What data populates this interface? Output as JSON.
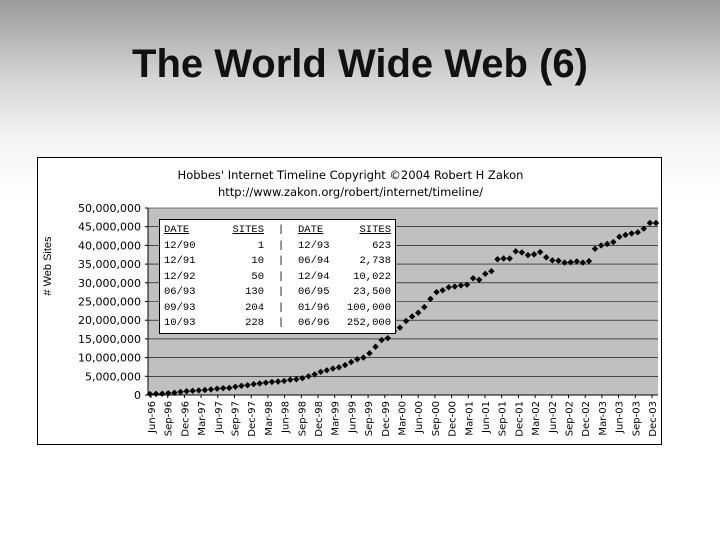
{
  "slide": {
    "title": "The World Wide Web (6)"
  },
  "chart_data": {
    "type": "scatter",
    "title": "Hobbes' Internet Timeline Copyright ©2004 Robert H Zakon",
    "subtitle": "http://www.zakon.org/robert/internet/timeline/",
    "ylabel": "# Web Sites",
    "xlabel": "",
    "ylim": [
      0,
      50000000
    ],
    "yticks": [
      "0",
      "5,000,000",
      "10,000,000",
      "15,000,000",
      "20,000,000",
      "25,000,000",
      "30,000,000",
      "35,000,000",
      "40,000,000",
      "45,000,000",
      "50,000,000"
    ],
    "categories": [
      "Jun-96",
      "Sep-96",
      "Dec-96",
      "Mar-97",
      "Jun-97",
      "Sep-97",
      "Dec-97",
      "Mar-98",
      "Jun-98",
      "Sep-98",
      "Dec-98",
      "Mar-99",
      "Jun-99",
      "Sep-99",
      "Dec-99",
      "Mar-00",
      "Jun-00",
      "Sep-00",
      "Dec-00",
      "Mar-01",
      "Jun-01",
      "Sep-01",
      "Dec-01",
      "Mar-02",
      "Jun-02",
      "Sep-02",
      "Dec-02",
      "Mar-03",
      "Jun-03",
      "Sep-03",
      "Dec-03"
    ],
    "grid": true,
    "series": [
      {
        "values": [
          252000,
          299000,
          342000,
          463000,
          603000,
          824000,
          1000000,
          1125000,
          1230000,
          1350000,
          1500000,
          1681000,
          1834000,
          1900000,
          2200000,
          2450000,
          2636000,
          2900000,
          3100000,
          3300000,
          3500000,
          3600000,
          3750000,
          4062000,
          4200000,
          4500000,
          5000000,
          5500000,
          6177000,
          6600000,
          7078000,
          7400000,
          8000000,
          8800000,
          9560000,
          10000000,
          11161000,
          12900000,
          14700000,
          15200000,
          17100000,
          18000000,
          19800000,
          21000000,
          22000000,
          23500000,
          25700000,
          27500000,
          28000000,
          28800000,
          29000000,
          29300000,
          29500000,
          31200000,
          30800000,
          32400000,
          33100000,
          36300000,
          36500000,
          36500000,
          38400000,
          38100000,
          37400000,
          37600000,
          38200000,
          36800000,
          36000000,
          35900000,
          35400000,
          35500000,
          35700000,
          35400000,
          35800000,
          39100000,
          40000000,
          40400000,
          40900000,
          42300000,
          42800000,
          43200000,
          43500000,
          44500000,
          46000000,
          46000000
        ]
      }
    ]
  },
  "table": {
    "headers": [
      "DATE",
      "SITES",
      "|",
      "DATE",
      "SITES"
    ],
    "rows": [
      [
        "12/90",
        "1",
        "|",
        "12/93",
        "623"
      ],
      [
        "12/91",
        "10",
        "|",
        "06/94",
        "2,738"
      ],
      [
        "12/92",
        "50",
        "|",
        "12/94",
        "10,022"
      ],
      [
        "06/93",
        "130",
        "|",
        "06/95",
        "23,500"
      ],
      [
        "09/93",
        "204",
        "|",
        "01/96",
        "100,000"
      ],
      [
        "10/93",
        "228",
        "|",
        "06/96",
        "252,000"
      ]
    ]
  }
}
